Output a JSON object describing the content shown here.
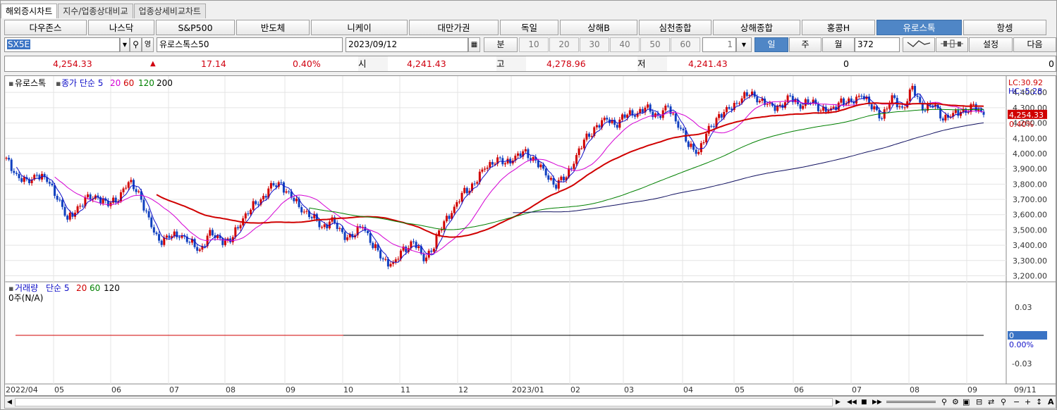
{
  "tabs": [
    "해외증시차트",
    "지수/업종상대비교",
    "업종상세비교차트"
  ],
  "index_buttons": [
    "다우존스",
    "나스닥",
    "S&P500",
    "반도체",
    "니케이",
    "대만가권",
    "독일",
    "상해B",
    "심천종합",
    "상해종합",
    "홍콩H",
    "유로스톡",
    "항셍"
  ],
  "selected_index": "유로스톡",
  "toolbar": {
    "code": "SX5E",
    "name": "유로스톡스50",
    "date": "2023/09/12",
    "period_label": "분",
    "periods": [
      "10",
      "20",
      "30",
      "40",
      "50",
      "60"
    ],
    "count_value": "1",
    "day": "일",
    "week": "주",
    "month": "월",
    "bar_count": "372",
    "settings": "설정",
    "next": "다음"
  },
  "quote": {
    "price": "4,254.33",
    "change": "17.14",
    "pct": "0.40%",
    "open_label": "시",
    "open": "4,241.43",
    "high_label": "고",
    "high": "4,278.96",
    "low_label": "저",
    "low": "4,241.43",
    "volume": "0",
    "amount": "0"
  },
  "legend": {
    "name": "유로스톡",
    "ma_label": "종가 단순",
    "ma_periods": [
      "5",
      "20",
      "60",
      "120",
      "200"
    ],
    "ma_colors": [
      "#1010c8",
      "#d400d4",
      "#d00000",
      "#008000",
      "#101060"
    ]
  },
  "vol_legend": {
    "name": "거래량",
    "ma_label": "단순",
    "periods": [
      "5",
      "20",
      "60",
      "120"
    ],
    "colors": [
      "#1010c8",
      "#d00000",
      "#008000",
      "#000000"
    ],
    "empty": "0주(N/A)"
  },
  "axis": {
    "y": [
      "4,400.00",
      "4,300.00",
      "4,200.00",
      "4,100.00",
      "4,000.00",
      "3,900.00",
      "3,800.00",
      "3,700.00",
      "3,600.00",
      "3,500.00",
      "3,400.00",
      "3,300.00",
      "3,200.00"
    ],
    "lc": "LC:30.92",
    "hc": "HC:-5.28",
    "cur": "4,254.33",
    "cur_pct": "0.40%",
    "vy": [
      "0.03",
      "0",
      "0.00%",
      "-0.03"
    ],
    "x": [
      "2022/04",
      "05",
      "06",
      "07",
      "08",
      "09",
      "10",
      "11",
      "12",
      "2023/01",
      "02",
      "03",
      "04",
      "05",
      "06",
      "07",
      "08",
      "09",
      "09/11"
    ]
  },
  "colors": {
    "up": "#d00000",
    "down": "#1040c0",
    "sel": "#4f86c6"
  },
  "chart_data": {
    "type": "candlestick",
    "series_name": "유로스톡",
    "y_range": [
      3170,
      4470
    ],
    "x_start": "2022-04",
    "x_end": "2023-09-12",
    "close_path": [
      3960,
      3860,
      3800,
      3870,
      3820,
      3730,
      3560,
      3650,
      3700,
      3720,
      3660,
      3720,
      3810,
      3750,
      3550,
      3430,
      3450,
      3480,
      3420,
      3370,
      3470,
      3440,
      3420,
      3560,
      3640,
      3700,
      3780,
      3800,
      3710,
      3640,
      3590,
      3520,
      3560,
      3470,
      3450,
      3540,
      3400,
      3310,
      3270,
      3370,
      3420,
      3310,
      3400,
      3560,
      3640,
      3750,
      3800,
      3910,
      3960,
      3940,
      3980,
      4000,
      3950,
      3860,
      3800,
      3850,
      3990,
      4100,
      4180,
      4220,
      4200,
      4260,
      4270,
      4290,
      4240,
      4300,
      4200,
      4050,
      4020,
      4150,
      4250,
      4280,
      4360,
      4390,
      4360,
      4300,
      4310,
      4360,
      4320,
      4340,
      4300,
      4270,
      4350,
      4320,
      4400,
      4300,
      4250,
      4360,
      4290,
      4420,
      4300,
      4320,
      4240,
      4250,
      4280,
      4300,
      4254
    ]
  }
}
